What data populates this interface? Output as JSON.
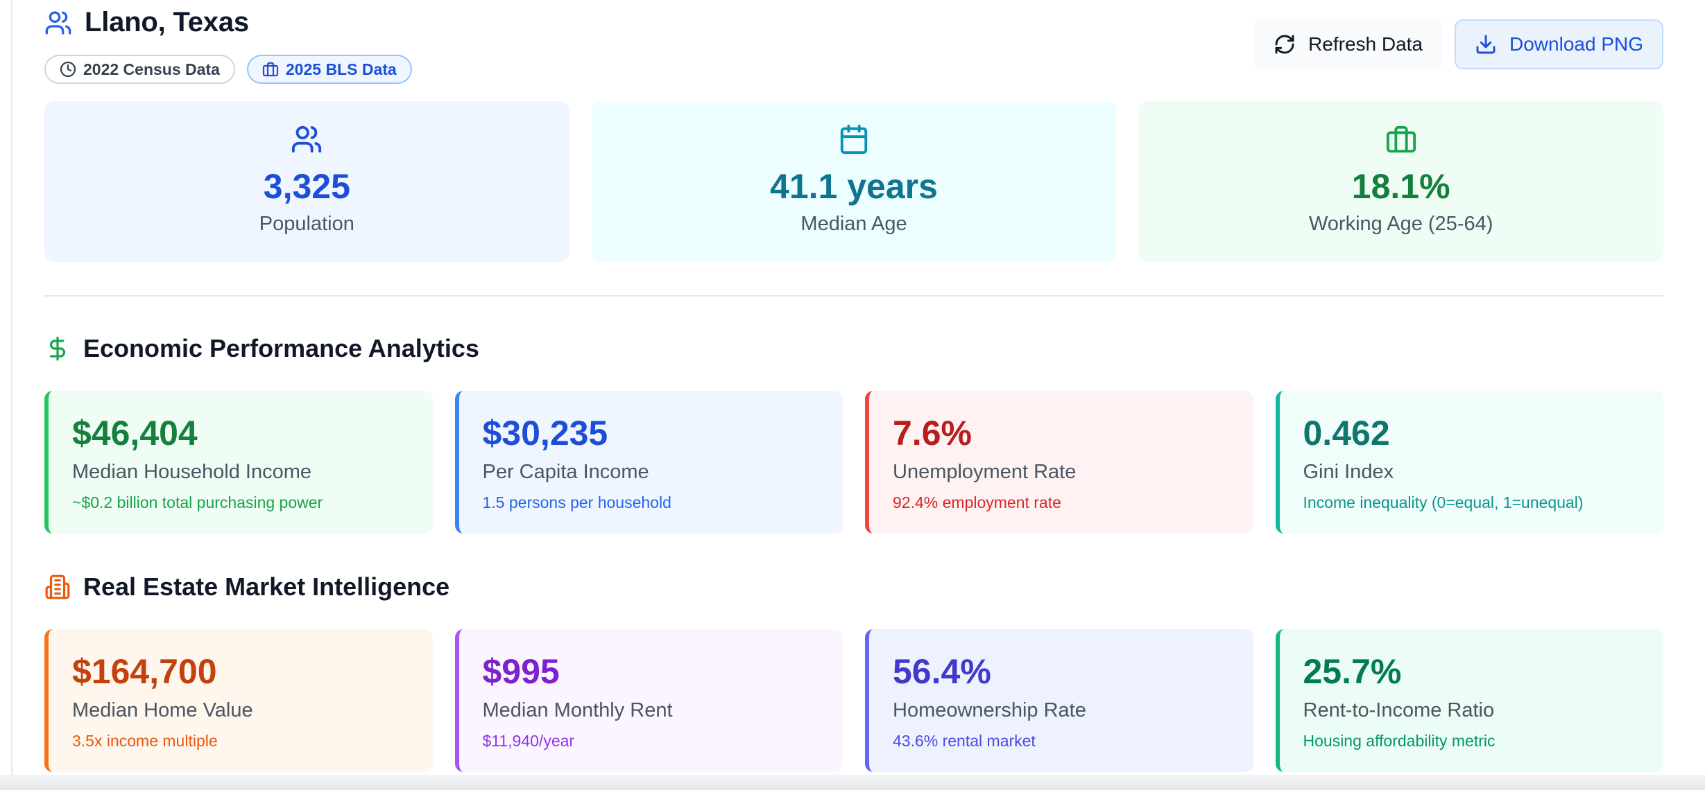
{
  "header": {
    "title": "Llano, Texas",
    "badges": [
      {
        "label": "2022 Census Data",
        "icon": "clock-icon"
      },
      {
        "label": "2025 BLS Data",
        "icon": "briefcase-icon"
      }
    ],
    "actions": {
      "refresh_label": "Refresh Data",
      "download_label": "Download PNG"
    }
  },
  "stats": [
    {
      "value": "3,325",
      "label": "Population",
      "icon": "users-icon",
      "color": "#1d4ed8"
    },
    {
      "value": "41.1 years",
      "label": "Median Age",
      "icon": "calendar-icon",
      "color": "#0e7490"
    },
    {
      "value": "18.1%",
      "label": "Working Age (25-64)",
      "icon": "briefcase-icon",
      "color": "#15803d"
    }
  ],
  "economic": {
    "title": "Economic Performance Analytics",
    "icon": "dollar-icon",
    "cards": [
      {
        "value": "$46,404",
        "label": "Median Household Income",
        "sub": "~$0.2 billion total purchasing power",
        "color": "#15803d"
      },
      {
        "value": "$30,235",
        "label": "Per Capita Income",
        "sub": "1.5 persons per household",
        "color": "#1d4ed8"
      },
      {
        "value": "7.6%",
        "label": "Unemployment Rate",
        "sub": "92.4% employment rate",
        "color": "#b91c1c"
      },
      {
        "value": "0.462",
        "label": "Gini Index",
        "sub": "Income inequality (0=equal, 1=unequal)",
        "color": "#0f766e"
      }
    ]
  },
  "real_estate": {
    "title": "Real Estate Market Intelligence",
    "icon": "building-icon",
    "cards": [
      {
        "value": "$164,700",
        "label": "Median Home Value",
        "sub": "3.5x income multiple",
        "color": "#c2410c"
      },
      {
        "value": "$995",
        "label": "Median Monthly Rent",
        "sub": "$11,940/year",
        "color": "#7e22ce"
      },
      {
        "value": "56.4%",
        "label": "Homeownership Rate",
        "sub": "43.6% rental market",
        "color": "#4338ca"
      },
      {
        "value": "25.7%",
        "label": "Rent-to-Income Ratio",
        "sub": "Housing affordability metric",
        "color": "#047857"
      }
    ]
  }
}
